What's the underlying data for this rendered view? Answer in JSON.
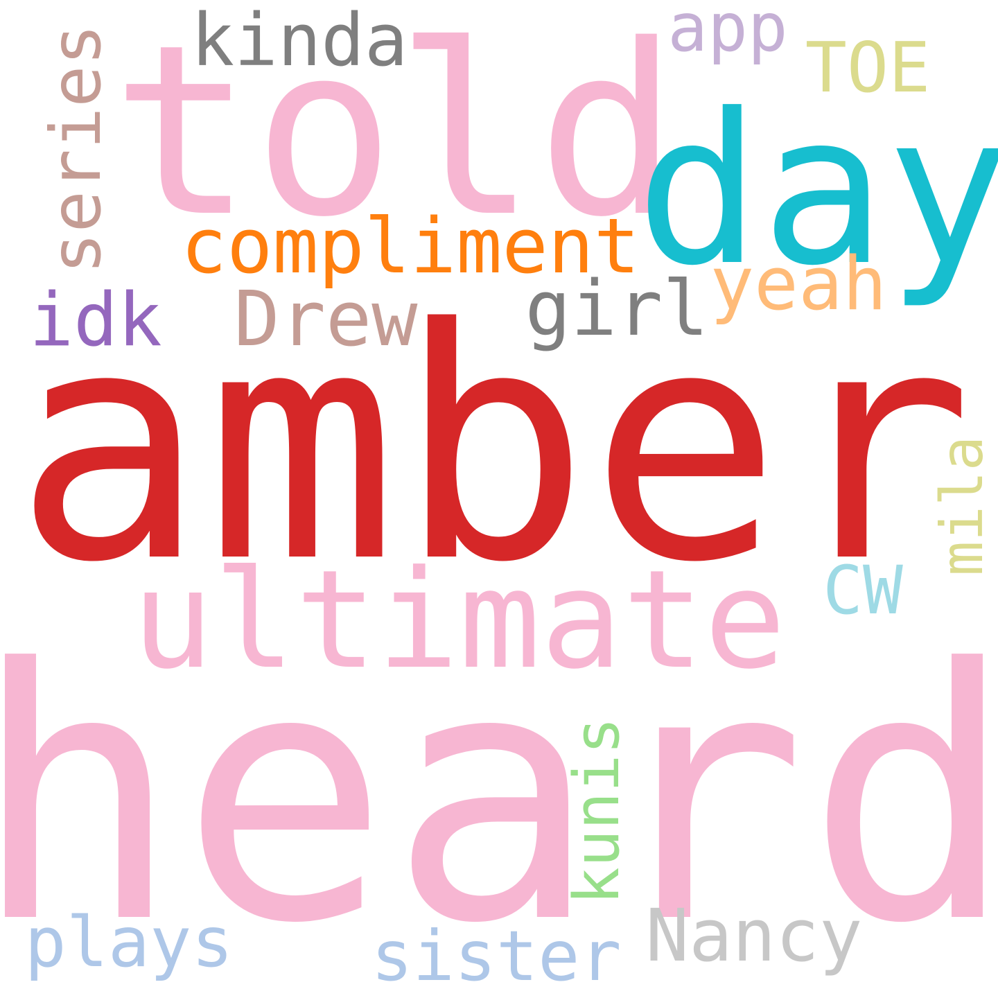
{
  "words": [
    {
      "id": "amber",
      "text": "amber",
      "color": "#d62728"
    },
    {
      "id": "heard",
      "text": "heard",
      "color": "#f7b6d2"
    },
    {
      "id": "told",
      "text": "told",
      "color": "#f7b6d2"
    },
    {
      "id": "day",
      "text": "day",
      "color": "#17becf"
    },
    {
      "id": "ultimate",
      "text": "ultimate",
      "color": "#f7b6d2"
    },
    {
      "id": "compliment",
      "text": "compliment",
      "color": "#ff7f0e"
    },
    {
      "id": "kinda",
      "text": "kinda",
      "color": "#7f7f7f"
    },
    {
      "id": "series",
      "text": "series",
      "color": "#c49c94"
    },
    {
      "id": "app",
      "text": "app",
      "color": "#c5b0d5"
    },
    {
      "id": "toe",
      "text": "TOE",
      "color": "#dbdb8d"
    },
    {
      "id": "girl",
      "text": "girl",
      "color": "#7f7f7f"
    },
    {
      "id": "yeah",
      "text": "yeah",
      "color": "#ffbb78"
    },
    {
      "id": "drew",
      "text": "Drew",
      "color": "#c49c94"
    },
    {
      "id": "idk",
      "text": "idk",
      "color": "#9467bd"
    },
    {
      "id": "mila",
      "text": "mila",
      "color": "#dbdb8d"
    },
    {
      "id": "cw",
      "text": "CW",
      "color": "#9edae5"
    },
    {
      "id": "kunis",
      "text": "kunis",
      "color": "#98df8a"
    },
    {
      "id": "nancy",
      "text": "Nancy",
      "color": "#c7c7c7"
    },
    {
      "id": "sister",
      "text": "sister",
      "color": "#aec7e8"
    },
    {
      "id": "plays",
      "text": "plays",
      "color": "#aec7e8"
    }
  ]
}
